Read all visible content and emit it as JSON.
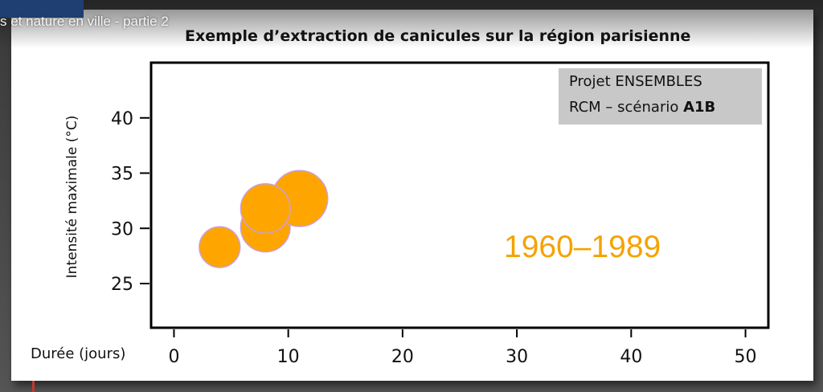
{
  "video": {
    "title": "s et nature en ville - partie 2"
  },
  "chart_data": {
    "type": "scatter",
    "title": "Exemple d’extraction de canicules sur la région parisienne",
    "xlabel": "Durée (jours)",
    "ylabel": "Intensité maximale (°C)",
    "xlim": [
      -2,
      52
    ],
    "ylim": [
      21,
      45
    ],
    "xticks": [
      0,
      10,
      20,
      30,
      40,
      50
    ],
    "yticks": [
      25,
      30,
      35,
      40
    ],
    "grid": false,
    "legend": "top-right",
    "legend_text": {
      "line1": "Projet ENSEMBLES",
      "line2_prefix": "RCM – scénario ",
      "line2_bold": "A1B"
    },
    "period_label": "1960–1989",
    "marker_color": "#FFA500",
    "marker_edge_color": "#c9a0dc",
    "points": [
      {
        "x": 4,
        "y": 28.3,
        "size": 4
      },
      {
        "x": 8,
        "y": 30.1,
        "size": 8
      },
      {
        "x": 11,
        "y": 32.7,
        "size": 11
      },
      {
        "x": 8,
        "y": 31.8,
        "size": 8
      }
    ]
  }
}
